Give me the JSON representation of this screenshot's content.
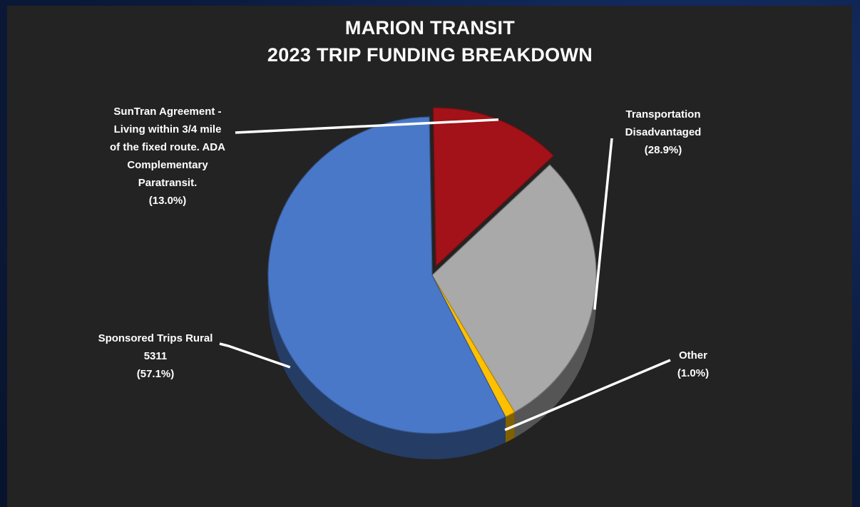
{
  "chart_data": {
    "type": "pie",
    "title": [
      "MARION TRANSIT",
      "2023 TRIP FUNDING BREAKDOWN"
    ],
    "slices": [
      {
        "name": "SunTran Agreement - Living within 3/4 mile of the fixed route.  ADA Complementary Paratransit.",
        "label_lines": [
          "SunTran Agreement -",
          "Living within 3/4 mile",
          "of the fixed route.  ADA",
          "Complementary",
          "Paratransit."
        ],
        "value": 13.0,
        "percent_label": "(13.0%)",
        "color": "#a21218",
        "exploded": true
      },
      {
        "name": "Transportation Disadvantaged",
        "label_lines": [
          "Transportation",
          "Disadvantaged"
        ],
        "value": 28.9,
        "percent_label": "(28.9%)",
        "color": "#a9a9a9",
        "exploded": false
      },
      {
        "name": "Other",
        "label_lines": [
          "Other"
        ],
        "value": 1.0,
        "percent_label": "(1.0%)",
        "color": "#ffc000",
        "exploded": false
      },
      {
        "name": "Sponsored Trips Rural 5311",
        "label_lines": [
          "Sponsored Trips Rural",
          "5311"
        ],
        "value": 57.1,
        "percent_label": "(57.1%)",
        "color": "#4a78c8",
        "exploded": false
      }
    ],
    "legend": "none",
    "style": "3d-pie"
  },
  "colors": {
    "panel_background": "#232323",
    "text": "#ffffff",
    "leader_line": "#ffffff"
  }
}
